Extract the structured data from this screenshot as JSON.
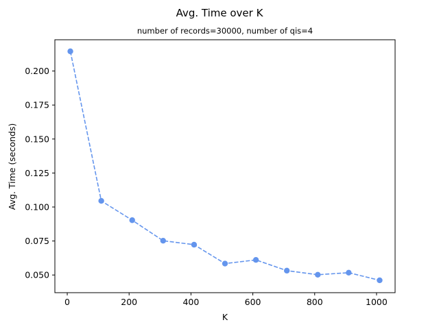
{
  "chart_data": {
    "type": "line",
    "title": "Avg. Time over K",
    "subtitle": "number of records=30000, number of qis=4",
    "xlabel": "K",
    "ylabel": "Avg. Time (seconds)",
    "xlim": [
      -40,
      1060
    ],
    "ylim": [
      0.037,
      0.223
    ],
    "xticks": [
      0,
      200,
      400,
      600,
      800,
      1000
    ],
    "yticks": [
      0.05,
      0.075,
      0.1,
      0.125,
      0.15,
      0.175,
      0.2
    ],
    "xtick_labels": [
      "0",
      "200",
      "400",
      "600",
      "800",
      "1000"
    ],
    "ytick_labels": [
      "0.050",
      "0.075",
      "0.100",
      "0.125",
      "0.150",
      "0.175",
      "0.200"
    ],
    "grid": false,
    "series": [
      {
        "color": "#6495ED",
        "line_style": "dashed",
        "marker": "circle",
        "x": [
          10,
          110,
          210,
          310,
          410,
          510,
          610,
          710,
          810,
          910,
          1010
        ],
        "y": [
          0.2145,
          0.1045,
          0.0903,
          0.0752,
          0.0723,
          0.0584,
          0.0611,
          0.0532,
          0.0502,
          0.0517,
          0.0461
        ]
      }
    ]
  }
}
